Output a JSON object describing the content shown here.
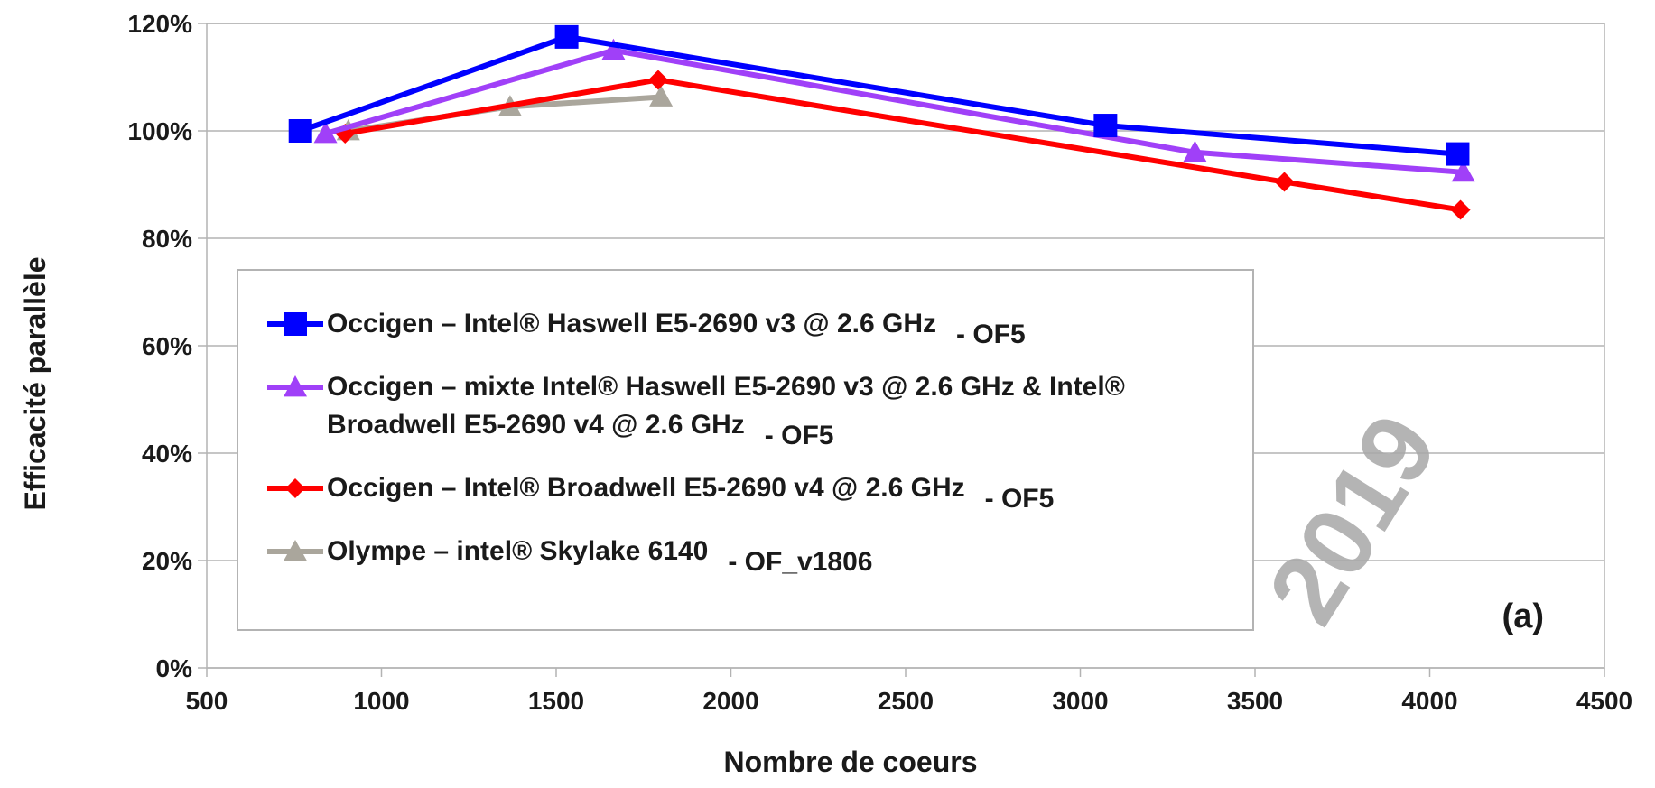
{
  "chart_data": {
    "type": "line",
    "xlabel": "Nombre de coeurs",
    "ylabel": "Efficacité parallèle",
    "annotations": [
      "(a)",
      "2019"
    ],
    "xlim": [
      500,
      4500
    ],
    "xticks": [
      500,
      1000,
      1500,
      2000,
      2500,
      3000,
      3500,
      4000,
      4500
    ],
    "ylim": [
      0,
      120
    ],
    "yticks": [
      {
        "value": 0,
        "label": "0%"
      },
      {
        "value": 20,
        "label": "20%"
      },
      {
        "value": 40,
        "label": "40%"
      },
      {
        "value": 60,
        "label": "60%"
      },
      {
        "value": 80,
        "label": "80%"
      },
      {
        "value": 100,
        "label": "100%"
      },
      {
        "value": 120,
        "label": "120%"
      }
    ],
    "grid": true,
    "series": [
      {
        "name": "Occigen – Intel® Haswell E5-2690 v3 @ 2.6 GHz",
        "legend_suffix": "- OF5",
        "color": "#0000ff",
        "marker": "square",
        "x": [
          768,
          1530,
          3072,
          4080
        ],
        "values": [
          100,
          117.5,
          101,
          95.7
        ]
      },
      {
        "name": "Occigen – mixte Intel® Haswell E5-2690 v3 @ 2.6 GHz & Intel® Broadwell E5-2690 v4 @ 2.6 GHz",
        "legend_suffix": "- OF5",
        "color": "#a040f8",
        "marker": "triangle",
        "x": [
          840,
          1664,
          3328,
          4096
        ],
        "values": [
          99.5,
          115,
          96,
          92.3
        ]
      },
      {
        "name": "Occigen – Intel® Broadwell E5-2690 v4 @ 2.6 GHz",
        "legend_suffix": "- OF5",
        "color": "#ff0000",
        "marker": "diamond",
        "x": [
          896,
          1792,
          3584,
          4088
        ],
        "values": [
          99.5,
          109.5,
          90.5,
          85.3
        ]
      },
      {
        "name": "Olympe – intel® Skylake 6140",
        "legend_suffix": "- OF_v1806",
        "color": "#aaa69c",
        "marker": "triangle",
        "x": [
          905,
          1368,
          1800
        ],
        "values": [
          100,
          104.5,
          106.3
        ]
      }
    ]
  }
}
